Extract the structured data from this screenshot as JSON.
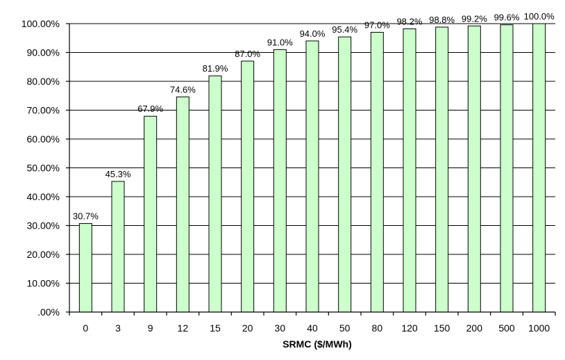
{
  "chart_data": {
    "type": "bar",
    "title": "",
    "xlabel": "SRMC ($/MWh)",
    "ylabel": "",
    "categories": [
      "0",
      "3",
      "9",
      "12",
      "15",
      "20",
      "30",
      "40",
      "50",
      "80",
      "120",
      "150",
      "200",
      "500",
      "1000"
    ],
    "values": [
      30.7,
      45.3,
      67.9,
      74.6,
      81.9,
      87.0,
      91.0,
      94.0,
      95.4,
      97.0,
      98.2,
      98.8,
      99.2,
      99.6,
      100.0
    ],
    "data_labels": [
      "30.7%",
      "45.3%",
      "67.9%",
      "74.6%",
      "81.9%",
      "87.0%",
      "91.0%",
      "94.0%",
      "95.4%",
      "97.0%",
      "98.2%",
      "98.8%",
      "99.2%",
      "99.6%",
      "100.0%"
    ],
    "ylim": [
      0,
      100
    ],
    "y_ticks": [
      0,
      10,
      20,
      30,
      40,
      50,
      60,
      70,
      80,
      90,
      100
    ],
    "y_tick_labels": [
      ".00%",
      "10.00%",
      "20.00%",
      "30.00%",
      "40.00%",
      "50.00%",
      "60.00%",
      "70.00%",
      "80.00%",
      "90.00%",
      "100.00%"
    ],
    "grid": true,
    "legend": "none",
    "bar_color": "#ccffcc",
    "bar_edge_color": "#000000"
  }
}
